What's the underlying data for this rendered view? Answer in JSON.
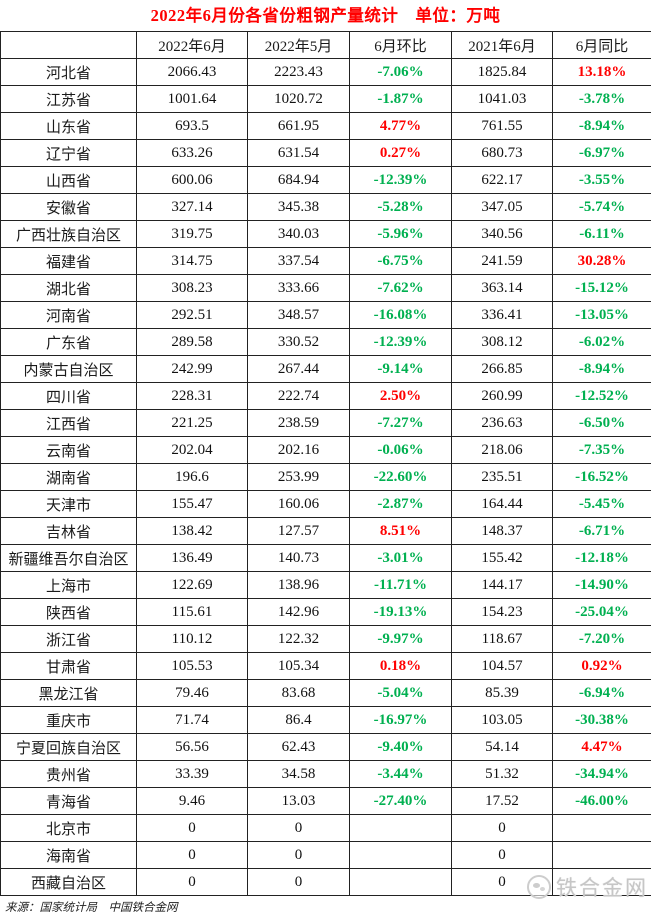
{
  "title": "2022年6月份各省份粗钢产量统计　单位：万吨",
  "source_note": "来源：国家统计局　中国铁合金网",
  "watermark": {
    "text": "铁合金网"
  },
  "colors": {
    "title_red": "#ff0000",
    "increase_red": "#ff0000",
    "decrease_green": "#00b050",
    "border": "#222222",
    "watermark_gray": "#c6c6c6"
  },
  "chart_data": {
    "type": "table",
    "columns": [
      "",
      "2022年6月",
      "2022年5月",
      "6月环比",
      "2021年6月",
      "6月同比"
    ],
    "rows": [
      [
        "河北省",
        "2066.43",
        "2223.43",
        "-7.06%",
        "1825.84",
        "13.18%"
      ],
      [
        "江苏省",
        "1001.64",
        "1020.72",
        "-1.87%",
        "1041.03",
        "-3.78%"
      ],
      [
        "山东省",
        "693.5",
        "661.95",
        "4.77%",
        "761.55",
        "-8.94%"
      ],
      [
        "辽宁省",
        "633.26",
        "631.54",
        "0.27%",
        "680.73",
        "-6.97%"
      ],
      [
        "山西省",
        "600.06",
        "684.94",
        "-12.39%",
        "622.17",
        "-3.55%"
      ],
      [
        "安徽省",
        "327.14",
        "345.38",
        "-5.28%",
        "347.05",
        "-5.74%"
      ],
      [
        "广西壮族自治区",
        "319.75",
        "340.03",
        "-5.96%",
        "340.56",
        "-6.11%"
      ],
      [
        "福建省",
        "314.75",
        "337.54",
        "-6.75%",
        "241.59",
        "30.28%"
      ],
      [
        "湖北省",
        "308.23",
        "333.66",
        "-7.62%",
        "363.14",
        "-15.12%"
      ],
      [
        "河南省",
        "292.51",
        "348.57",
        "-16.08%",
        "336.41",
        "-13.05%"
      ],
      [
        "广东省",
        "289.58",
        "330.52",
        "-12.39%",
        "308.12",
        "-6.02%"
      ],
      [
        "内蒙古自治区",
        "242.99",
        "267.44",
        "-9.14%",
        "266.85",
        "-8.94%"
      ],
      [
        "四川省",
        "228.31",
        "222.74",
        "2.50%",
        "260.99",
        "-12.52%"
      ],
      [
        "江西省",
        "221.25",
        "238.59",
        "-7.27%",
        "236.63",
        "-6.50%"
      ],
      [
        "云南省",
        "202.04",
        "202.16",
        "-0.06%",
        "218.06",
        "-7.35%"
      ],
      [
        "湖南省",
        "196.6",
        "253.99",
        "-22.60%",
        "235.51",
        "-16.52%"
      ],
      [
        "天津市",
        "155.47",
        "160.06",
        "-2.87%",
        "164.44",
        "-5.45%"
      ],
      [
        "吉林省",
        "138.42",
        "127.57",
        "8.51%",
        "148.37",
        "-6.71%"
      ],
      [
        "新疆维吾尔自治区",
        "136.49",
        "140.73",
        "-3.01%",
        "155.42",
        "-12.18%"
      ],
      [
        "上海市",
        "122.69",
        "138.96",
        "-11.71%",
        "144.17",
        "-14.90%"
      ],
      [
        "陕西省",
        "115.61",
        "142.96",
        "-19.13%",
        "154.23",
        "-25.04%"
      ],
      [
        "浙江省",
        "110.12",
        "122.32",
        "-9.97%",
        "118.67",
        "-7.20%"
      ],
      [
        "甘肃省",
        "105.53",
        "105.34",
        "0.18%",
        "104.57",
        "0.92%"
      ],
      [
        "黑龙江省",
        "79.46",
        "83.68",
        "-5.04%",
        "85.39",
        "-6.94%"
      ],
      [
        "重庆市",
        "71.74",
        "86.4",
        "-16.97%",
        "103.05",
        "-30.38%"
      ],
      [
        "宁夏回族自治区",
        "56.56",
        "62.43",
        "-9.40%",
        "54.14",
        "4.47%"
      ],
      [
        "贵州省",
        "33.39",
        "34.58",
        "-3.44%",
        "51.32",
        "-34.94%"
      ],
      [
        "青海省",
        "9.46",
        "13.03",
        "-27.40%",
        "17.52",
        "-46.00%"
      ],
      [
        "北京市",
        "0",
        "0",
        "",
        "0",
        ""
      ],
      [
        "海南省",
        "0",
        "0",
        "",
        "0",
        ""
      ],
      [
        "西藏自治区",
        "0",
        "0",
        "",
        "0",
        ""
      ]
    ]
  }
}
